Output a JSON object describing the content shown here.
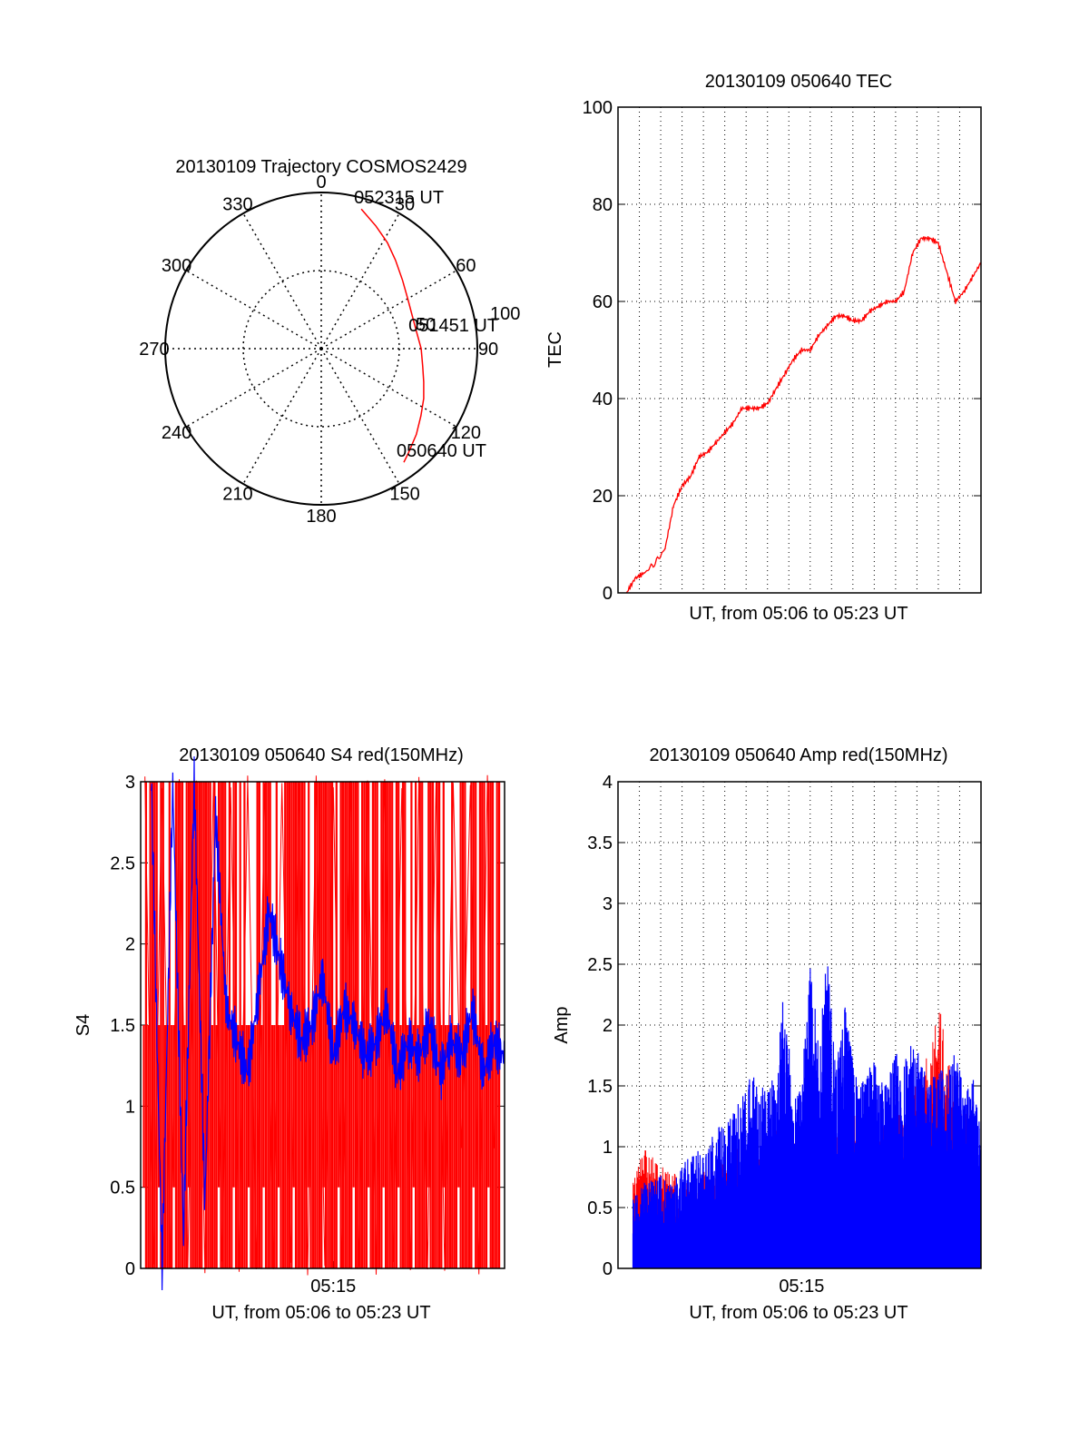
{
  "chart_data": [
    {
      "type": "polar",
      "title": "20130109 Trajectory COSMOS2429",
      "angle_labels": [
        "0",
        "30",
        "60",
        "90",
        "120",
        "150",
        "180",
        "210",
        "240",
        "270",
        "300",
        "330"
      ],
      "radius_labels": [
        "50",
        "100"
      ],
      "zenith_range": [
        0,
        100
      ],
      "track": {
        "color": "#ff0000",
        "points_azimuth_zenith": [
          [
            16,
            93
          ],
          [
            24,
            86
          ],
          [
            32,
            80
          ],
          [
            40,
            74
          ],
          [
            50,
            68
          ],
          [
            60,
            64
          ],
          [
            70,
            62
          ],
          [
            80,
            62
          ],
          [
            90,
            64
          ],
          [
            100,
            66
          ],
          [
            108,
            69
          ],
          [
            116,
            73
          ],
          [
            124,
            77
          ],
          [
            132,
            82
          ],
          [
            140,
            87
          ],
          [
            144,
            90
          ]
        ]
      },
      "annotations": [
        {
          "text": "052315 UT",
          "azimuth": 16,
          "zenith": 93
        },
        {
          "text": "051451 UT",
          "azimuth": 83,
          "zenith": 61
        },
        {
          "text": "050640 UT",
          "azimuth": 144,
          "zenith": 90
        }
      ]
    },
    {
      "type": "line",
      "title": "20130109 050640 TEC",
      "ylabel": "TEC",
      "xlabel": "UT, from 05:06 to 05:23 UT",
      "ylim": [
        0,
        100
      ],
      "yticks": [
        "0",
        "20",
        "40",
        "60",
        "80",
        "100"
      ],
      "xlim": [
        0,
        17
      ],
      "grid": true,
      "color": "#ff0000",
      "series": [
        {
          "x": [
            0.4,
            0.8,
            1.2,
            1.7,
            2.2,
            2.6,
            3.0,
            3.4,
            3.8,
            4.2,
            4.6,
            5.0,
            5.4,
            5.8,
            6.2,
            6.6,
            7.0,
            7.4,
            7.8,
            8.2,
            8.6,
            9.0,
            9.4,
            9.8,
            10.2,
            10.6,
            11.0,
            11.4,
            11.8,
            12.2,
            12.6,
            13.0,
            13.4,
            13.8,
            14.2,
            14.6,
            15.0,
            15.4,
            15.8,
            16.2,
            16.6,
            17.0
          ],
          "values": [
            0,
            3,
            4,
            6,
            9,
            18,
            22,
            24,
            28,
            29,
            31,
            33,
            35,
            38,
            38,
            38,
            39,
            42,
            45,
            48,
            50,
            50,
            53,
            55,
            57,
            57,
            56,
            56,
            58,
            59,
            60,
            60,
            62,
            70,
            73,
            73,
            72,
            66,
            60,
            62,
            65,
            68
          ]
        }
      ]
    },
    {
      "type": "line",
      "title": "20130109 050640 S4 red(150MHz)",
      "ylabel": "S4",
      "xlabel": "UT, from 05:06 to 05:23 UT",
      "ylim": [
        0,
        3
      ],
      "yticks": [
        "0",
        "0.5",
        "1",
        "1.5",
        "2",
        "2.5",
        "3"
      ],
      "xtick_labels": [
        {
          "x": 9,
          "label": "05:15"
        }
      ],
      "xlim": [
        0,
        17
      ],
      "colors": {
        "red": "#ff0000",
        "blue": "#0000ff"
      },
      "series": [
        {
          "name": "",
          "color": "#ff0000",
          "x": [
            0.2,
            0.6,
            1.0,
            1.4,
            1.8,
            2.2,
            2.6,
            3.0,
            3.4,
            3.8,
            4.2,
            4.6,
            5.0,
            5.4,
            5.8,
            6.2,
            6.6,
            7.0,
            7.4,
            7.8,
            8.2,
            8.6,
            9.0,
            9.4,
            9.8,
            10.2,
            10.6,
            11.0,
            11.4,
            11.8,
            12.2,
            12.6,
            13.0,
            13.4,
            13.8,
            14.2,
            14.6,
            15.0,
            15.4,
            15.8,
            16.2,
            16.6
          ],
          "values": [
            3,
            0,
            3,
            0,
            3,
            0,
            3,
            0,
            3,
            0,
            3,
            0,
            3,
            0,
            3,
            0,
            3,
            0,
            3,
            0,
            3,
            0,
            3,
            0,
            3,
            0,
            3,
            0,
            3,
            0,
            3,
            0,
            3,
            0,
            3,
            0,
            3,
            0.7,
            3,
            0,
            3,
            0
          ]
        },
        {
          "name": "",
          "color": "#0000ff",
          "x": [
            0.5,
            1.0,
            1.5,
            2.0,
            2.5,
            3.0,
            3.5,
            4.0,
            4.5,
            5.0,
            5.5,
            6.0,
            6.5,
            7.0,
            7.5,
            8.0,
            8.5,
            9.0,
            9.5,
            10.0,
            10.5,
            11.0,
            11.5,
            12.0,
            12.5,
            13.0,
            13.5,
            14.0,
            14.5,
            15.0,
            15.5,
            16.0,
            16.5,
            17.0
          ],
          "values": [
            3,
            0,
            3,
            0.2,
            3,
            0.4,
            2.8,
            1.6,
            1.4,
            1.2,
            1.7,
            2.2,
            1.9,
            1.6,
            1.4,
            1.5,
            1.8,
            1.3,
            1.6,
            1.5,
            1.3,
            1.4,
            1.6,
            1.2,
            1.4,
            1.3,
            1.5,
            1.2,
            1.4,
            1.3,
            1.6,
            1.2,
            1.4,
            1.3
          ]
        }
      ]
    },
    {
      "type": "line",
      "title": "20130109 050640 Amp red(150MHz)",
      "ylabel": "Amp",
      "xlabel": "UT, from 05:06 to 05:23 UT",
      "ylim": [
        0,
        4
      ],
      "yticks": [
        "0",
        "0.5",
        "1",
        "1.5",
        "2",
        "2.5",
        "3",
        "3.5",
        "4"
      ],
      "xtick_labels": [
        {
          "x": 8.6,
          "label": "05:15"
        }
      ],
      "xlim": [
        0,
        17
      ],
      "grid": true,
      "series": [
        {
          "name": "",
          "color": "#ff0000",
          "x": [
            0.7,
            1.2,
            1.8,
            2.5,
            3.2,
            4.0,
            4.8,
            5.5,
            6.2,
            7.0,
            7.8,
            8.6,
            9.4,
            10.2,
            11.0,
            11.8,
            12.6,
            13.4,
            14.2,
            15.0,
            15.8,
            16.6
          ],
          "values": [
            0.7,
            1.0,
            0.9,
            0.8,
            0.7,
            0.8,
            0.9,
            1.0,
            0.9,
            1.1,
            1.2,
            1.0,
            1.1,
            1.2,
            1.3,
            1.1,
            1.2,
            1.3,
            1.6,
            2.2,
            1.5,
            1.2
          ]
        },
        {
          "name": "",
          "color": "#0000ff",
          "x": [
            0.7,
            1.2,
            1.8,
            2.5,
            3.2,
            4.0,
            4.8,
            5.5,
            6.2,
            7.0,
            7.4,
            7.8,
            8.2,
            8.6,
            9.0,
            9.4,
            9.8,
            10.2,
            10.6,
            11.0,
            11.4,
            11.8,
            12.2,
            12.6,
            13.0,
            13.4,
            13.8,
            14.2,
            14.6,
            15.0,
            15.4,
            15.8,
            16.2,
            16.6,
            17.0
          ],
          "values": [
            0.6,
            0.7,
            0.8,
            0.7,
            0.9,
            1.0,
            1.2,
            1.3,
            1.6,
            1.5,
            1.6,
            2.4,
            1.4,
            1.5,
            2.6,
            1.8,
            2.6,
            1.6,
            2.2,
            1.7,
            1.5,
            1.8,
            1.6,
            1.5,
            1.8,
            1.7,
            1.9,
            1.7,
            1.5,
            1.7,
            1.6,
            1.8,
            1.5,
            1.6,
            1.1
          ]
        }
      ]
    }
  ]
}
